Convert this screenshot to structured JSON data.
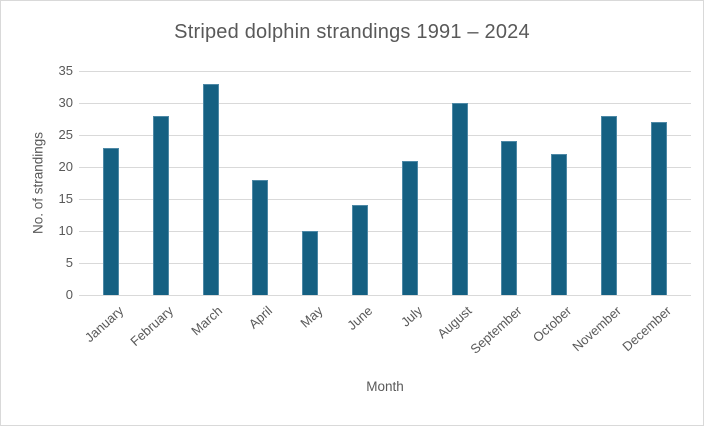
{
  "frame": {
    "background_color": "#FFFFFF",
    "border_color": "#D9D9D9"
  },
  "chart_data": {
    "type": "bar",
    "title": "Striped dolphin strandings 1991 – 2024",
    "categories": [
      "January",
      "February",
      "March",
      "April",
      "May",
      "June",
      "July",
      "August",
      "September",
      "October",
      "November",
      "December"
    ],
    "values": [
      23,
      28,
      33,
      18,
      10,
      14,
      21,
      30,
      24,
      22,
      28,
      27
    ],
    "xlabel": "Month",
    "ylabel": "No. of strandings",
    "ylim": [
      0,
      35
    ],
    "yticks": [
      0,
      5,
      10,
      15,
      20,
      25,
      30,
      35
    ],
    "grid": true,
    "legend": "none",
    "x_label_rotation_deg": -42,
    "colors": {
      "bar_fill": "#156082",
      "bar_border": "#4E89A6",
      "gridline": "#D9D9D9",
      "text": "#595959"
    }
  }
}
